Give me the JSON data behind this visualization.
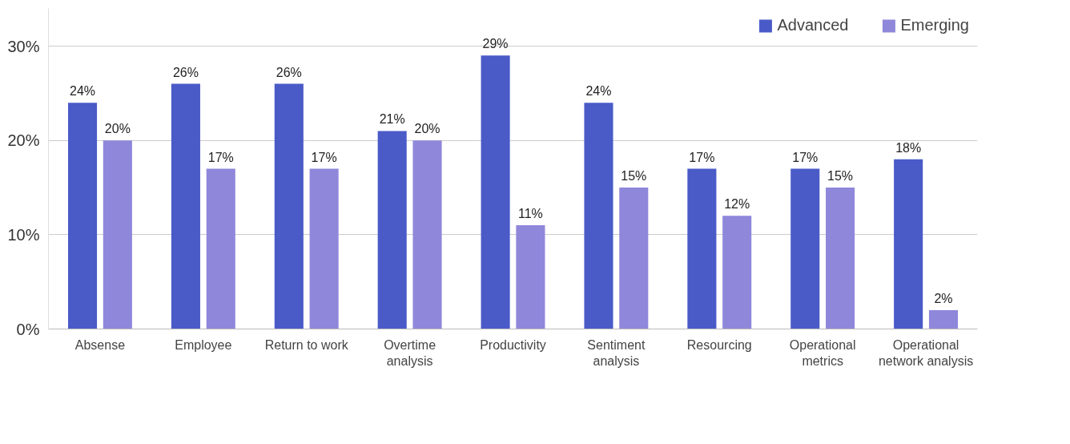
{
  "chart_data": {
    "type": "bar",
    "categories": [
      "Absense",
      "Employee",
      "Return to work",
      "Overtime analysis",
      "Productivity",
      "Sentiment analysis",
      "Resourcing",
      "Operational metrics",
      "Operational network analysis"
    ],
    "series": [
      {
        "name": "Advanced",
        "color": "#4a5bc8",
        "values": [
          24,
          26,
          26,
          21,
          29,
          24,
          17,
          17,
          18
        ],
        "value_labels": [
          "24%",
          "26%",
          "26%",
          "21%",
          "29%",
          "24%",
          "17%",
          "17%",
          "18%"
        ]
      },
      {
        "name": "Emerging",
        "color": "#8f87da",
        "values": [
          20,
          17,
          17,
          20,
          11,
          15,
          12,
          15,
          2
        ],
        "value_labels": [
          "20%",
          "17%",
          "17%",
          "20%",
          "11%",
          "15%",
          "12%",
          "15%",
          "2%"
        ]
      }
    ],
    "ylim": [
      0,
      34
    ],
    "yticks": [
      {
        "value": 0,
        "label": "0%"
      },
      {
        "value": 10,
        "label": "10%"
      },
      {
        "value": 20,
        "label": "20%"
      },
      {
        "value": 30,
        "label": "30%"
      }
    ],
    "grid": "y",
    "legend": "top right"
  }
}
